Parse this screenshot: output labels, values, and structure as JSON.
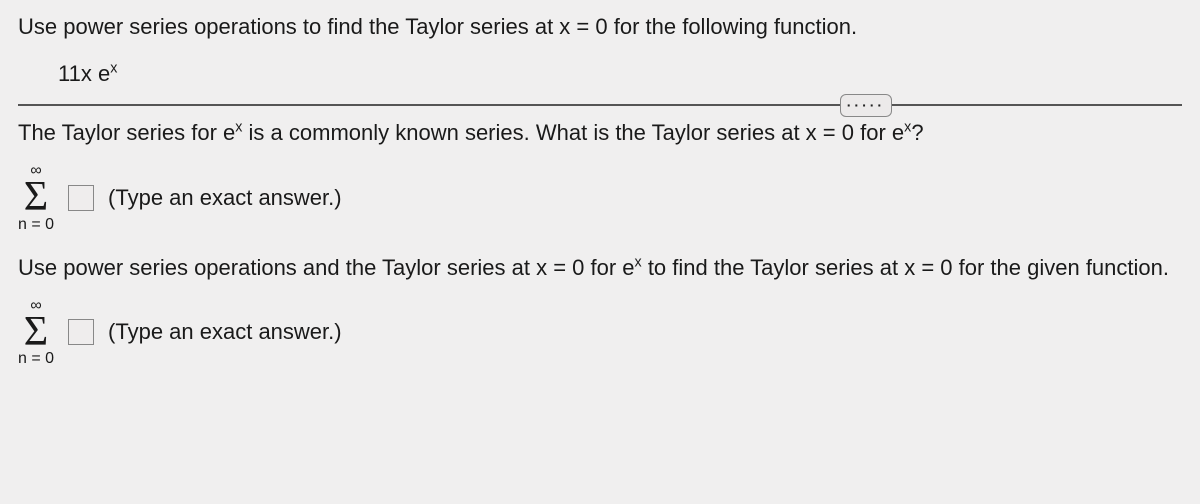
{
  "q1_intro": "Use power series operations to find the Taylor series at x = 0 for the following function.",
  "expr_coeff": "11x",
  "expr_base": "e",
  "expr_exp": "x",
  "q2_pre": "The Taylor series for ",
  "q2_base": "e",
  "q2_exp": "x",
  "q2_mid": " is a commonly known series. What is the Taylor series at x = ",
  "q2_zero": "0",
  "q2_for": " for ",
  "q2_base2": "e",
  "q2_exp2": "x",
  "q2_qmark": "?",
  "ellipsis": "·····",
  "sum_top": "∞",
  "sigma": "Σ",
  "sum_bot": "n = 0",
  "hint": "(Type an exact answer.)",
  "q3_pre": "Use power series operations and the Taylor series at x = 0 for ",
  "q3_base": "e",
  "q3_exp": "x",
  "q3_post": " to find the Taylor series at x = 0 for the given function."
}
